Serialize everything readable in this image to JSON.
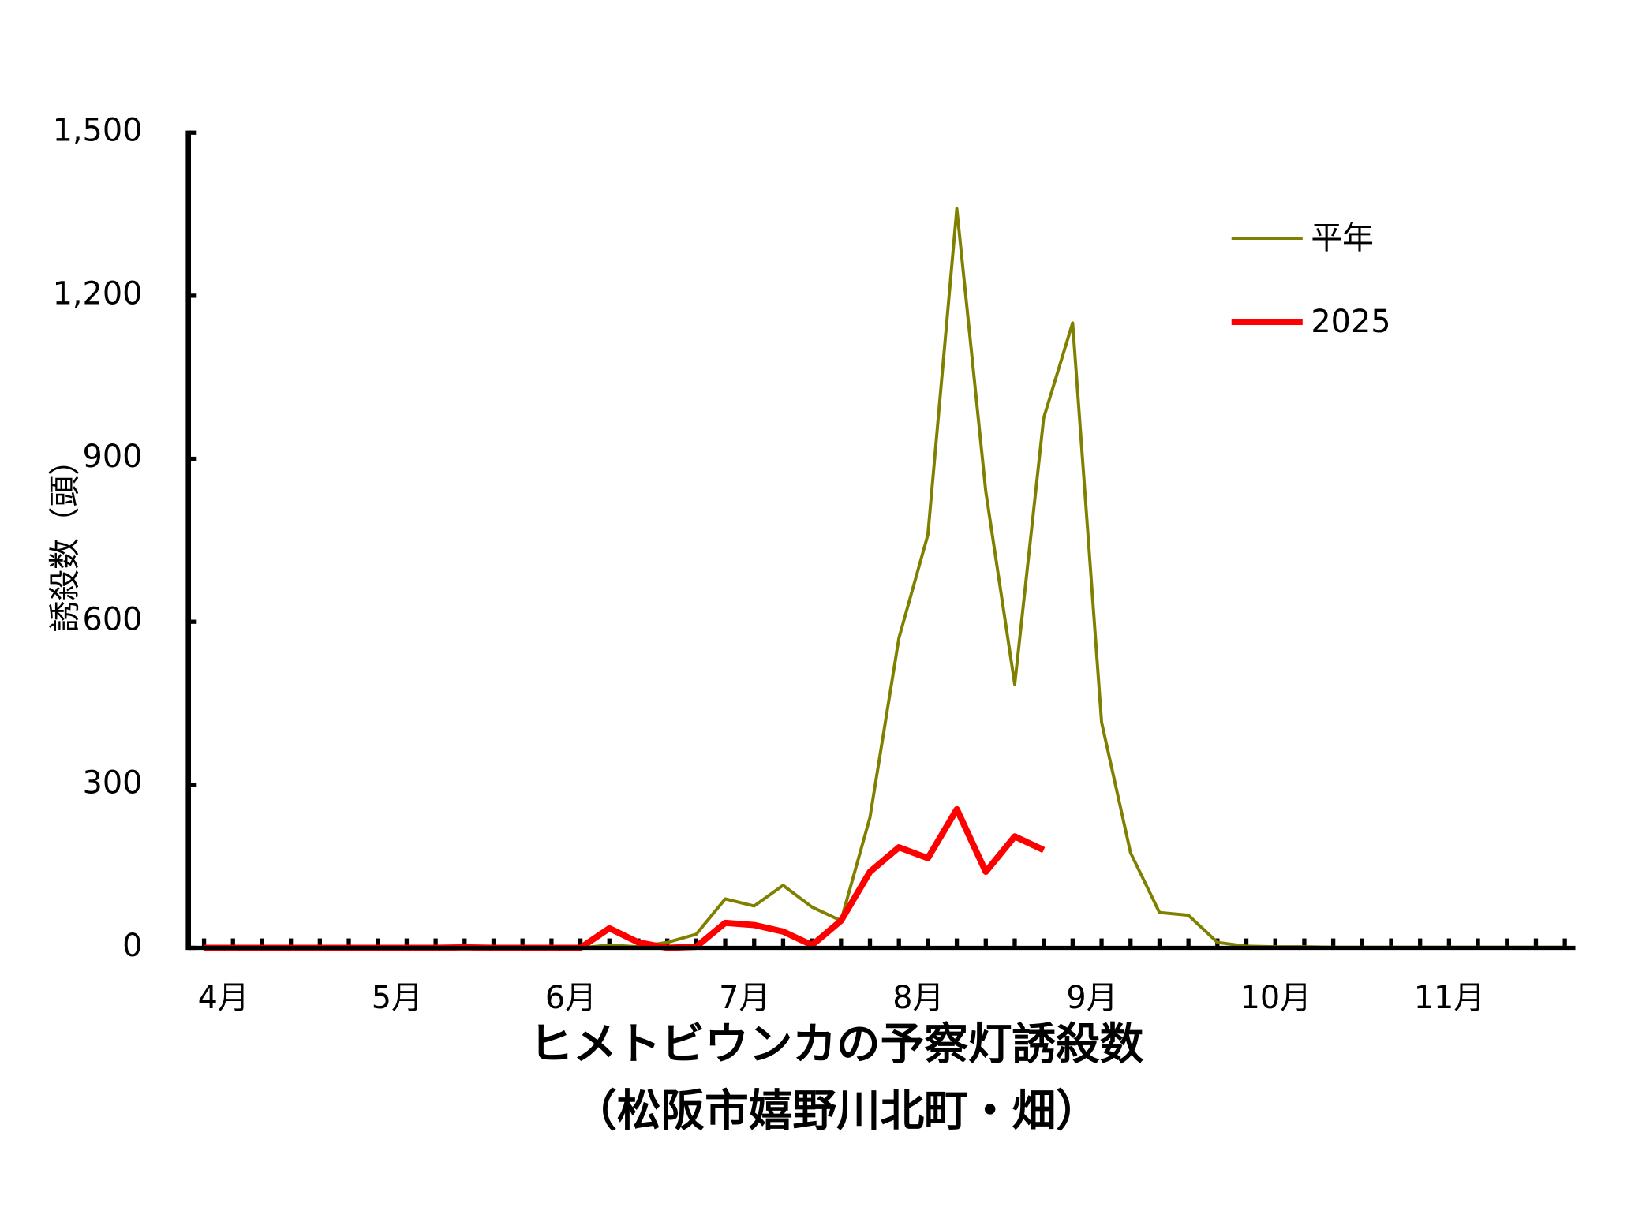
{
  "chart_data": {
    "type": "line",
    "title": "ヒメトビウンカの予察灯誘殺数",
    "subtitle": "（松阪市嬉野川北町・畑）",
    "y_label": "誘殺数（頭）",
    "categories": [
      "4月",
      null,
      null,
      null,
      null,
      null,
      "5月",
      null,
      null,
      null,
      null,
      null,
      "6月",
      null,
      null,
      null,
      null,
      null,
      "7月",
      null,
      null,
      null,
      null,
      null,
      "8月",
      null,
      null,
      null,
      null,
      null,
      "9月",
      null,
      null,
      null,
      null,
      null,
      "10月",
      null,
      null,
      null,
      null,
      null,
      "11月",
      null,
      null,
      null,
      null,
      null
    ],
    "series": [
      {
        "name": "平年",
        "color": "#808000",
        "width": 3,
        "values": [
          0,
          0,
          0,
          0,
          0,
          0,
          0,
          0,
          0,
          0,
          0,
          0,
          0,
          0,
          5,
          2,
          10,
          25,
          90,
          77,
          115,
          75,
          50,
          240,
          570,
          760,
          1360,
          840,
          485,
          975,
          1150,
          415,
          175,
          65,
          60,
          10,
          3,
          2,
          2,
          1,
          1,
          1,
          1,
          1,
          1,
          1,
          1,
          1
        ]
      },
      {
        "name": "2025",
        "color": "#ff0000",
        "width": 6,
        "values": [
          0,
          0,
          0,
          0,
          0,
          0,
          0,
          0,
          0,
          1,
          0,
          0,
          0,
          0,
          36,
          10,
          0,
          2,
          46,
          42,
          30,
          5,
          50,
          140,
          185,
          165,
          255,
          140,
          205,
          180,
          null,
          null,
          null,
          null,
          null,
          null,
          null,
          null,
          null,
          null,
          null,
          null,
          null,
          null,
          null,
          null,
          null,
          null
        ]
      }
    ],
    "ylim": [
      0,
      1500
    ],
    "yticks": [
      0,
      {
        "value": 300,
        "label": "300"
      },
      600,
      900,
      {
        "value": 1200,
        "label": "1,200"
      },
      {
        "value": 1500,
        "label": "1,500"
      }
    ],
    "legend": "upper right"
  }
}
